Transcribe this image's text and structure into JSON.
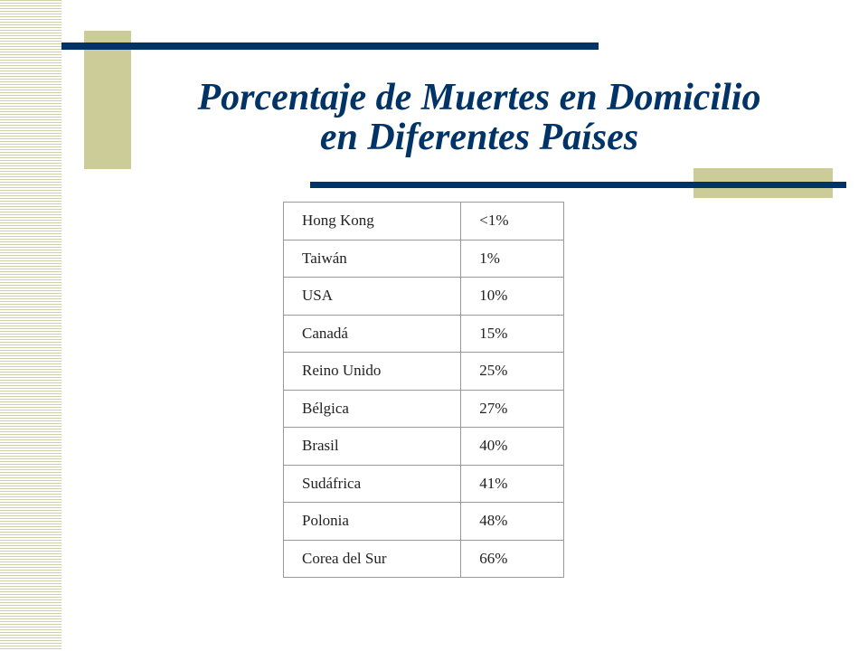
{
  "slide": {
    "title_line1": "Porcentaje de Muertes en Domicilio",
    "title_line2": "en Diferentes Países"
  },
  "colors": {
    "accent_bar": "#003366",
    "accent_block": "#cccc99",
    "title": "#003366"
  },
  "table": {
    "rows": [
      {
        "country": "Hong Kong",
        "value": "<1%"
      },
      {
        "country": "Taiwán",
        "value": "1%"
      },
      {
        "country": "USA",
        "value": "10%"
      },
      {
        "country": "Canadá",
        "value": "15%"
      },
      {
        "country": "Reino Unido",
        "value": "25%"
      },
      {
        "country": "Bélgica",
        "value": "27%"
      },
      {
        "country": "Brasil",
        "value": "40%"
      },
      {
        "country": "Sudáfrica",
        "value": "41%"
      },
      {
        "country": "Polonia",
        "value": "48%"
      },
      {
        "country": "Corea del Sur",
        "value": "66%"
      }
    ]
  }
}
